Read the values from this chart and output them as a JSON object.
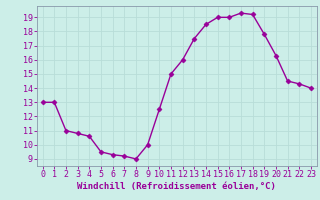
{
  "x": [
    0,
    1,
    2,
    3,
    4,
    5,
    6,
    7,
    8,
    9,
    10,
    11,
    12,
    13,
    14,
    15,
    16,
    17,
    18,
    19,
    20,
    21,
    22,
    23
  ],
  "y": [
    13.0,
    13.0,
    11.0,
    10.8,
    10.6,
    9.5,
    9.3,
    9.2,
    9.0,
    10.0,
    12.5,
    15.0,
    16.0,
    17.5,
    18.5,
    19.0,
    19.0,
    19.3,
    19.2,
    17.8,
    16.3,
    14.5,
    14.3,
    14.0
  ],
  "line_color": "#990099",
  "marker": "D",
  "markersize": 2.5,
  "linewidth": 1.0,
  "xlabel": "Windchill (Refroidissement éolien,°C)",
  "xlabel_fontsize": 6.5,
  "ytick_labels": [
    "9",
    "10",
    "11",
    "12",
    "13",
    "14",
    "15",
    "16",
    "17",
    "18",
    "19"
  ],
  "ylabel_ticks": [
    9,
    10,
    11,
    12,
    13,
    14,
    15,
    16,
    17,
    18,
    19
  ],
  "xlim": [
    -0.5,
    23.5
  ],
  "ylim": [
    8.5,
    19.8
  ],
  "background_color": "#cceee8",
  "grid_color": "#aadddd",
  "tick_fontsize": 6.0,
  "xtick_labels": [
    "0",
    "1",
    "2",
    "3",
    "4",
    "5",
    "6",
    "7",
    "8",
    "9",
    "10",
    "11",
    "12",
    "13",
    "14",
    "15",
    "16",
    "17",
    "18",
    "19",
    "20",
    "21",
    "22",
    "23"
  ]
}
